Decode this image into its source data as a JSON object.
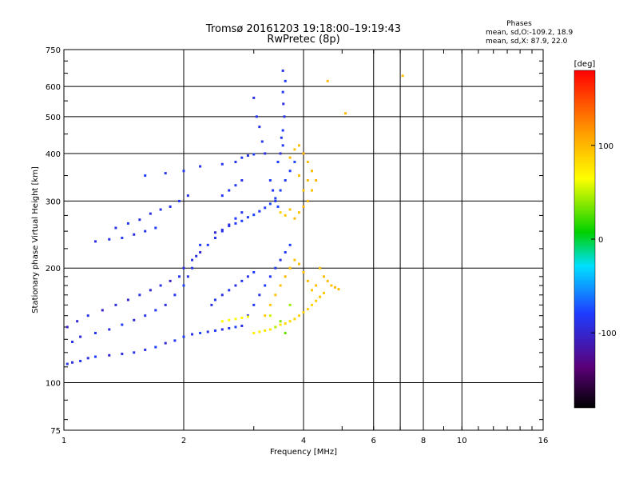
{
  "title_line1": "Tromsø 20161203 19:18:00–19:19:43",
  "title_line2": "RwPretec (8p)",
  "info": {
    "heading": "Phases",
    "line_o": "mean, sd,O:-109.2, 18.9",
    "line_x": "mean, sd,X:  87.9, 22.0"
  },
  "colorbar": {
    "label": "[deg]",
    "ticks": [
      {
        "value": 100,
        "label": "100"
      },
      {
        "value": 0,
        "label": "0"
      },
      {
        "value": -100,
        "label": "-100"
      }
    ]
  },
  "chart_data": {
    "type": "scatter",
    "xlabel": "Frequency [MHz]",
    "ylabel": "Stationary phase Virtual Height [km]",
    "xscale": "log",
    "yscale": "log",
    "xlim": [
      1,
      16
    ],
    "ylim": [
      75,
      750
    ],
    "colorscale": "rainbow",
    "clim": [
      -180,
      180
    ],
    "xticks": [
      {
        "value": 1,
        "label": "1"
      },
      {
        "value": 2,
        "label": "2"
      },
      {
        "value": 4,
        "label": "4"
      },
      {
        "value": 6,
        "label": "6"
      },
      {
        "value": 8,
        "label": "8"
      },
      {
        "value": 10,
        "label": "10"
      },
      {
        "value": 16,
        "label": "16"
      }
    ],
    "xgrid": [
      2,
      4,
      6,
      7,
      8,
      10
    ],
    "yticks": [
      {
        "value": 75,
        "label": "75"
      },
      {
        "value": 100,
        "label": "100"
      },
      {
        "value": 200,
        "label": "200"
      },
      {
        "value": 300,
        "label": "300"
      },
      {
        "value": 400,
        "label": "400"
      },
      {
        "value": 500,
        "label": "500"
      },
      {
        "value": 600,
        "label": "600"
      },
      {
        "value": 750,
        "label": "750"
      }
    ],
    "ygrid": [
      100,
      200,
      300,
      400,
      500,
      600
    ],
    "grid": true,
    "series": [
      {
        "points": [
          [
            1.02,
            112,
            -108
          ],
          [
            1.05,
            113,
            -112
          ],
          [
            1.1,
            114,
            -105
          ],
          [
            1.15,
            116,
            -110
          ],
          [
            1.2,
            117,
            -100
          ],
          [
            1.3,
            118,
            -118
          ],
          [
            1.4,
            119,
            -112
          ],
          [
            1.5,
            120,
            -105
          ],
          [
            1.6,
            122,
            -110
          ],
          [
            1.7,
            124,
            -98
          ],
          [
            1.8,
            127,
            -115
          ],
          [
            1.9,
            129,
            -106
          ],
          [
            2.0,
            132,
            -102
          ],
          [
            2.1,
            134,
            -110
          ],
          [
            2.2,
            135,
            -96
          ],
          [
            2.3,
            136,
            -108
          ],
          [
            2.4,
            137,
            -100
          ],
          [
            2.5,
            138,
            -112
          ],
          [
            2.6,
            139,
            -104
          ],
          [
            2.7,
            140,
            -98
          ],
          [
            2.8,
            141,
            -110
          ],
          [
            1.02,
            140,
            -120
          ],
          [
            1.08,
            145,
            -115
          ],
          [
            1.15,
            150,
            -110
          ],
          [
            1.25,
            155,
            -120
          ],
          [
            1.35,
            160,
            -112
          ],
          [
            1.45,
            165,
            -118
          ],
          [
            1.55,
            170,
            -108
          ],
          [
            1.65,
            175,
            -116
          ],
          [
            1.75,
            180,
            -110
          ],
          [
            1.85,
            185,
            -120
          ],
          [
            1.95,
            190,
            -104
          ],
          [
            2.0,
            200,
            -112
          ],
          [
            2.1,
            210,
            -108
          ],
          [
            2.2,
            220,
            -116
          ],
          [
            2.3,
            230,
            -102
          ],
          [
            2.4,
            240,
            -110
          ],
          [
            2.5,
            250,
            -106
          ],
          [
            2.6,
            260,
            -112
          ],
          [
            2.7,
            270,
            -100
          ],
          [
            2.8,
            280,
            -108
          ],
          [
            1.05,
            128,
            -110
          ],
          [
            1.1,
            132,
            -115
          ],
          [
            1.2,
            135,
            -106
          ],
          [
            1.3,
            138,
            -112
          ],
          [
            1.4,
            142,
            -100
          ],
          [
            1.5,
            146,
            -115
          ],
          [
            1.6,
            150,
            -108
          ],
          [
            1.7,
            155,
            -104
          ],
          [
            1.8,
            160,
            -112
          ],
          [
            1.9,
            170,
            -106
          ],
          [
            2.0,
            180,
            -98
          ],
          [
            2.05,
            190,
            -110
          ],
          [
            2.1,
            200,
            -104
          ],
          [
            2.15,
            215,
            -112
          ],
          [
            2.2,
            230,
            -100
          ],
          [
            2.4,
            248,
            -115
          ],
          [
            2.5,
            252,
            -112
          ],
          [
            2.6,
            258,
            -108
          ],
          [
            2.7,
            262,
            -104
          ],
          [
            2.8,
            266,
            -100
          ],
          [
            2.9,
            272,
            -102
          ],
          [
            3.0,
            276,
            -98
          ],
          [
            3.1,
            282,
            -104
          ],
          [
            3.2,
            288,
            -100
          ],
          [
            3.3,
            295,
            -96
          ],
          [
            3.4,
            305,
            -102
          ],
          [
            3.5,
            320,
            -98
          ],
          [
            3.6,
            340,
            -104
          ],
          [
            3.7,
            360,
            -100
          ],
          [
            3.8,
            380,
            -96
          ],
          [
            3.55,
            420,
            -104
          ],
          [
            3.55,
            460,
            -100
          ],
          [
            3.58,
            500,
            -108
          ],
          [
            3.56,
            540,
            -112
          ],
          [
            3.55,
            580,
            -104
          ],
          [
            3.6,
            620,
            -100
          ],
          [
            3.55,
            660,
            -108
          ],
          [
            3.5,
            400,
            -110
          ],
          [
            3.52,
            440,
            -106
          ],
          [
            3.45,
            380,
            -104
          ],
          [
            3.0,
            560,
            -112
          ],
          [
            3.05,
            500,
            -106
          ],
          [
            3.1,
            470,
            -110
          ],
          [
            3.15,
            430,
            -104
          ],
          [
            3.2,
            400,
            -108
          ],
          [
            3.3,
            340,
            -100
          ],
          [
            3.35,
            320,
            -106
          ],
          [
            3.4,
            300,
            -102
          ],
          [
            3.45,
            290,
            -98
          ],
          [
            2.9,
            150,
            -110
          ],
          [
            3.0,
            160,
            -104
          ],
          [
            3.1,
            170,
            -108
          ],
          [
            3.2,
            180,
            -100
          ],
          [
            3.3,
            190,
            -106
          ],
          [
            3.4,
            200,
            -102
          ],
          [
            3.5,
            210,
            -108
          ],
          [
            3.6,
            220,
            -104
          ],
          [
            3.7,
            230,
            -100
          ],
          [
            2.5,
            170,
            -112
          ],
          [
            2.6,
            175,
            -106
          ],
          [
            2.7,
            180,
            -110
          ],
          [
            2.8,
            185,
            -104
          ],
          [
            2.9,
            190,
            -108
          ],
          [
            3.0,
            195,
            -100
          ],
          [
            2.4,
            165,
            -106
          ],
          [
            2.35,
            160,
            -110
          ],
          [
            2.7,
            380,
            -108
          ],
          [
            2.8,
            390,
            -104
          ],
          [
            2.9,
            395,
            -110
          ],
          [
            3.0,
            398,
            -102
          ],
          [
            2.5,
            375,
            -106
          ],
          [
            2.2,
            370,
            -110
          ],
          [
            2.0,
            360,
            -104
          ],
          [
            1.8,
            355,
            -108
          ],
          [
            1.6,
            350,
            -100
          ],
          [
            1.2,
            235,
            -112
          ],
          [
            1.3,
            238,
            -108
          ],
          [
            1.4,
            240,
            -104
          ],
          [
            1.5,
            245,
            -110
          ],
          [
            1.6,
            250,
            -106
          ],
          [
            1.7,
            255,
            -100
          ],
          [
            1.85,
            290,
            -108
          ],
          [
            1.95,
            300,
            -104
          ],
          [
            2.05,
            310,
            -110
          ],
          [
            1.75,
            285,
            -106
          ],
          [
            1.65,
            278,
            -112
          ],
          [
            1.45,
            262,
            -104
          ],
          [
            1.55,
            268,
            -110
          ],
          [
            1.35,
            255,
            -108
          ],
          [
            2.6,
            320,
            -106
          ],
          [
            2.7,
            330,
            -102
          ],
          [
            2.8,
            340,
            -108
          ],
          [
            2.5,
            310,
            -104
          ]
        ]
      },
      {
        "points": [
          [
            3.0,
            135,
            70
          ],
          [
            3.1,
            136,
            72
          ],
          [
            3.2,
            137,
            76
          ],
          [
            3.3,
            138,
            74
          ],
          [
            3.4,
            140,
            78
          ],
          [
            3.5,
            142,
            76
          ],
          [
            3.6,
            143,
            82
          ],
          [
            3.7,
            145,
            80
          ],
          [
            3.8,
            147,
            84
          ],
          [
            3.9,
            150,
            86
          ],
          [
            4.0,
            153,
            88
          ],
          [
            4.1,
            156,
            90
          ],
          [
            4.2,
            160,
            86
          ],
          [
            4.3,
            164,
            90
          ],
          [
            4.4,
            168,
            94
          ],
          [
            4.5,
            172,
            92
          ],
          [
            3.2,
            150,
            90
          ],
          [
            3.3,
            160,
            94
          ],
          [
            3.4,
            170,
            96
          ],
          [
            3.5,
            180,
            98
          ],
          [
            3.6,
            190,
            100
          ],
          [
            3.7,
            200,
            98
          ],
          [
            3.8,
            210,
            96
          ],
          [
            3.9,
            205,
            100
          ],
          [
            4.0,
            195,
            96
          ],
          [
            4.1,
            185,
            100
          ],
          [
            4.2,
            175,
            94
          ],
          [
            4.3,
            180,
            98
          ],
          [
            3.8,
            270,
            100
          ],
          [
            3.9,
            280,
            96
          ],
          [
            4.0,
            290,
            104
          ],
          [
            4.1,
            300,
            100
          ],
          [
            4.2,
            320,
            98
          ],
          [
            4.3,
            340,
            104
          ],
          [
            4.2,
            360,
            102
          ],
          [
            4.1,
            380,
            98
          ],
          [
            4.0,
            400,
            104
          ],
          [
            3.9,
            420,
            100
          ],
          [
            3.8,
            410,
            96
          ],
          [
            3.7,
            390,
            100
          ],
          [
            3.6,
            275,
            90
          ],
          [
            3.5,
            280,
            86
          ],
          [
            3.7,
            285,
            96
          ],
          [
            4.0,
            320,
            94
          ],
          [
            4.1,
            340,
            100
          ],
          [
            3.9,
            350,
            98
          ],
          [
            4.4,
            200,
            96
          ],
          [
            4.5,
            190,
            100
          ],
          [
            4.6,
            185,
            98
          ],
          [
            4.7,
            180,
            96
          ],
          [
            4.8,
            178,
            100
          ],
          [
            4.9,
            176,
            98
          ],
          [
            4.6,
            620,
            100
          ],
          [
            5.1,
            510,
            100
          ],
          [
            7.1,
            640,
            98
          ],
          [
            2.5,
            145,
            60
          ],
          [
            2.6,
            146,
            62
          ],
          [
            2.7,
            147,
            58
          ],
          [
            2.8,
            148,
            64
          ],
          [
            2.9,
            149,
            60
          ],
          [
            3.6,
            135,
            30
          ],
          [
            3.4,
            140,
            45
          ],
          [
            3.7,
            160,
            40
          ],
          [
            3.3,
            150,
            50
          ],
          [
            3.5,
            145,
            35
          ]
        ]
      }
    ]
  }
}
